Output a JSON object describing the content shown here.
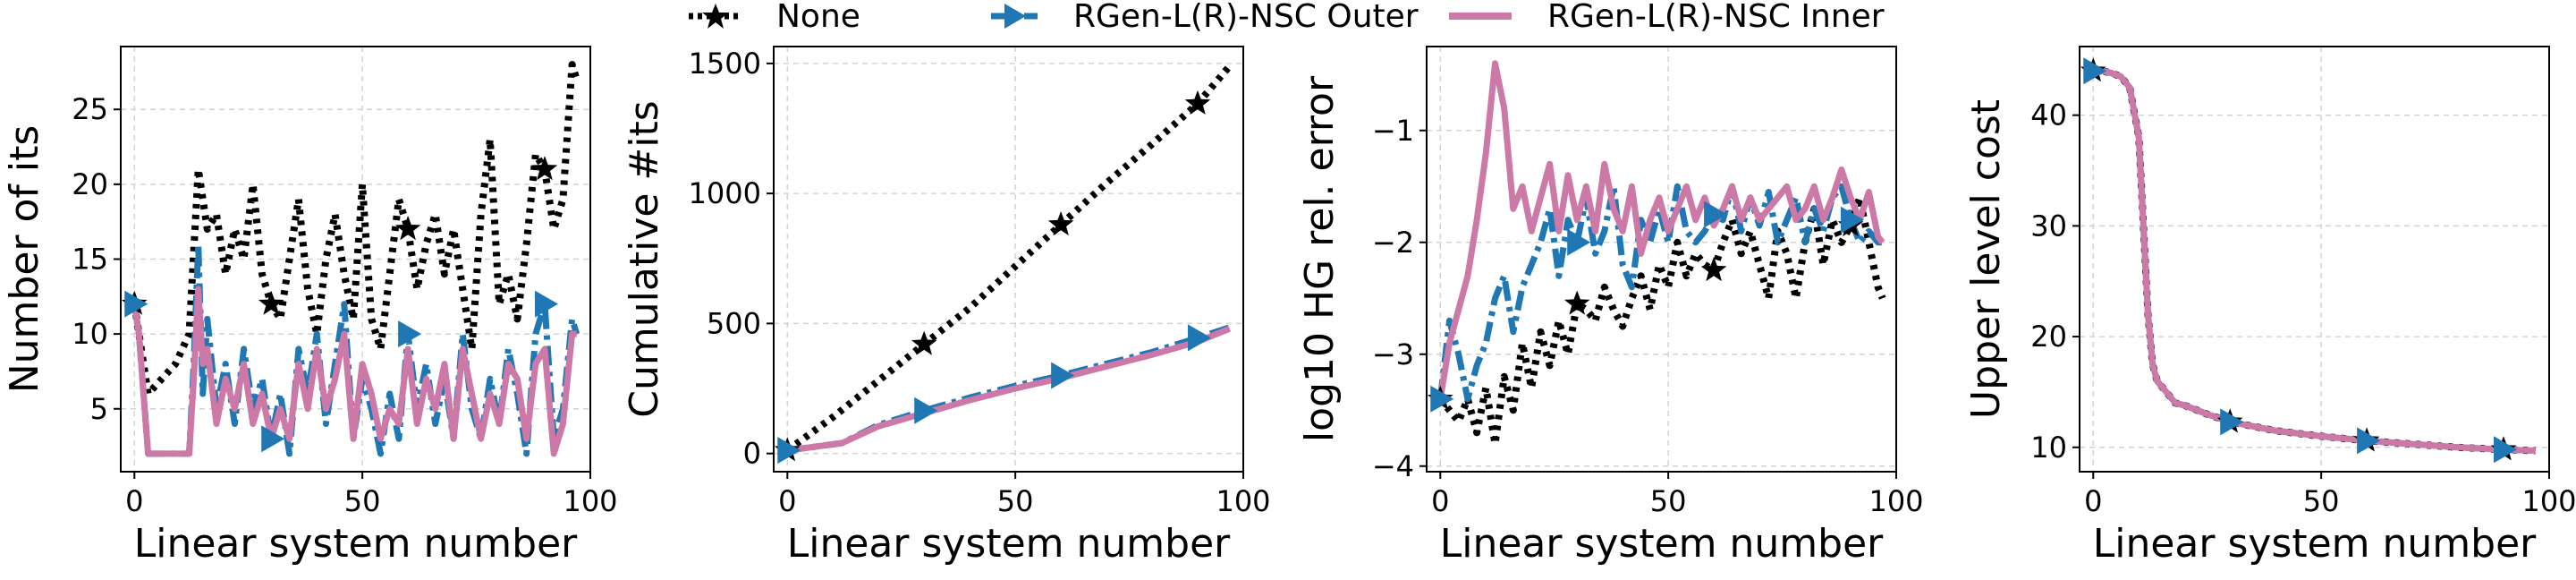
{
  "legend": [
    {
      "label": "None",
      "color": "#000000",
      "style": "dotted",
      "marker": "star"
    },
    {
      "label": "RGen-L(R)-NSC Outer",
      "color": "#1f77b4",
      "style": "dashdot",
      "marker": "triangle-right"
    },
    {
      "label": "RGen-L(R)-NSC Inner",
      "color": "#cc79a7",
      "style": "solid",
      "marker": "none"
    }
  ],
  "chart_data": [
    {
      "type": "line",
      "xlabel": "Linear system number",
      "ylabel": "Number of its",
      "xlim": [
        -3,
        100
      ],
      "ylim": [
        0.8,
        29.2
      ],
      "xticks": [
        0,
        50,
        100
      ],
      "yticks": [
        5,
        10,
        15,
        20,
        25
      ],
      "ytick_labels": [
        "5",
        "10",
        "15",
        "20",
        "25"
      ],
      "grid": true,
      "series": [
        {
          "name": "None",
          "x": [
            0,
            3,
            6,
            9,
            12,
            14,
            16,
            18,
            20,
            22,
            24,
            26,
            28,
            30,
            32,
            34,
            36,
            38,
            40,
            42,
            44,
            46,
            48,
            50,
            52,
            54,
            56,
            58,
            60,
            62,
            64,
            66,
            68,
            70,
            72,
            74,
            76,
            78,
            80,
            82,
            84,
            86,
            88,
            90,
            92,
            94,
            96,
            97
          ],
          "y": [
            12,
            6,
            7,
            8,
            10,
            21,
            17,
            18,
            14,
            17,
            15,
            20,
            14,
            12,
            11,
            15,
            19,
            13,
            10,
            15,
            18,
            14,
            11,
            20,
            11,
            9,
            14,
            19,
            17,
            13,
            16,
            18,
            14,
            17,
            13,
            9,
            18,
            23,
            12,
            14,
            11,
            16,
            22,
            21,
            17,
            19,
            28,
            27
          ]
        },
        {
          "name": "RGen-L(R)-NSC Outer",
          "x": [
            0,
            1,
            3,
            6,
            9,
            12,
            13,
            14,
            15,
            16,
            18,
            20,
            22,
            24,
            26,
            28,
            30,
            32,
            34,
            36,
            38,
            40,
            42,
            44,
            46,
            48,
            50,
            52,
            54,
            56,
            58,
            60,
            62,
            64,
            66,
            68,
            70,
            72,
            74,
            76,
            78,
            80,
            82,
            84,
            86,
            88,
            90,
            92,
            94,
            96,
            97
          ],
          "y": [
            12,
            10,
            2,
            2,
            2,
            2,
            8,
            16,
            6,
            11,
            5,
            8,
            4,
            9,
            5,
            7,
            3,
            6,
            2,
            9,
            6,
            10,
            4,
            8,
            12,
            3,
            7,
            5,
            2,
            6,
            3,
            10,
            5,
            8,
            4,
            7,
            3,
            10,
            5,
            3,
            7,
            4,
            9,
            6,
            2,
            10,
            12,
            3,
            5,
            11,
            10
          ]
        },
        {
          "name": "RGen-L(R)-NSC Inner",
          "x": [
            0,
            1,
            3,
            6,
            9,
            12,
            13,
            14,
            15,
            16,
            18,
            20,
            22,
            24,
            26,
            28,
            30,
            32,
            34,
            36,
            38,
            40,
            42,
            44,
            46,
            48,
            50,
            52,
            54,
            56,
            58,
            60,
            62,
            64,
            66,
            68,
            70,
            72,
            74,
            76,
            78,
            80,
            82,
            84,
            86,
            88,
            90,
            92,
            94,
            96,
            97
          ],
          "y": [
            12,
            10,
            2,
            2,
            2,
            2,
            7,
            13,
            8,
            9,
            4,
            7,
            5,
            8,
            4,
            6,
            3,
            5,
            3,
            8,
            5,
            9,
            5,
            7,
            10,
            3,
            8,
            6,
            3,
            5,
            4,
            9,
            4,
            7,
            5,
            8,
            3,
            9,
            6,
            3,
            6,
            4,
            8,
            7,
            3,
            8,
            9,
            2,
            4,
            10,
            10
          ]
        }
      ],
      "markers": {
        "None": [
          0,
          30,
          60,
          90
        ],
        "RGen-L(R)-NSC Outer": [
          0,
          30,
          60,
          90
        ]
      }
    },
    {
      "type": "line",
      "xlabel": "Linear system number",
      "ylabel": "Cumulative #its",
      "xlim": [
        -3,
        100
      ],
      "ylim": [
        -70,
        1565
      ],
      "xticks": [
        0,
        50,
        100
      ],
      "yticks": [
        0,
        500,
        1000,
        1500
      ],
      "ytick_labels": [
        "0",
        "500",
        "1000",
        "1500"
      ],
      "grid": true,
      "series": [
        {
          "name": "None",
          "x": [
            0,
            10,
            20,
            30,
            40,
            50,
            60,
            70,
            80,
            90,
            97
          ],
          "y": [
            12,
            140,
            280,
            420,
            560,
            720,
            880,
            1040,
            1190,
            1345,
            1490
          ]
        },
        {
          "name": "RGen-L(R)-NSC Outer",
          "x": [
            0,
            12,
            20,
            30,
            40,
            50,
            60,
            70,
            80,
            90,
            97
          ],
          "y": [
            12,
            40,
            110,
            165,
            215,
            260,
            300,
            345,
            390,
            445,
            485
          ]
        },
        {
          "name": "RGen-L(R)-NSC Inner",
          "x": [
            0,
            12,
            20,
            30,
            40,
            50,
            60,
            70,
            80,
            90,
            97
          ],
          "y": [
            12,
            40,
            105,
            155,
            205,
            250,
            290,
            335,
            380,
            430,
            480
          ]
        }
      ],
      "markers": {
        "None": [
          0,
          30,
          60,
          90
        ],
        "RGen-L(R)-NSC Outer": [
          0,
          30,
          60,
          90
        ]
      }
    },
    {
      "type": "line",
      "xlabel": "Linear system number",
      "ylabel": "log10 HG rel. error",
      "xlim": [
        -3,
        100
      ],
      "ylim": [
        -4.05,
        -0.25
      ],
      "xticks": [
        0,
        50,
        100
      ],
      "yticks": [
        -4,
        -3,
        -2,
        -1
      ],
      "ytick_labels": [
        "−4",
        "−3",
        "−2",
        "−1"
      ],
      "grid": true,
      "series": [
        {
          "name": "None",
          "x": [
            0,
            2,
            4,
            6,
            8,
            10,
            12,
            14,
            16,
            18,
            20,
            22,
            24,
            26,
            28,
            30,
            32,
            34,
            36,
            38,
            40,
            42,
            44,
            46,
            48,
            50,
            52,
            54,
            56,
            58,
            60,
            62,
            64,
            66,
            68,
            70,
            72,
            74,
            76,
            78,
            80,
            82,
            84,
            86,
            88,
            90,
            92,
            94,
            96,
            97
          ],
          "y": [
            -3.4,
            -3.5,
            -3.6,
            -3.4,
            -3.7,
            -3.3,
            -3.8,
            -3.2,
            -3.5,
            -2.9,
            -3.3,
            -2.8,
            -3.1,
            -2.7,
            -3.0,
            -2.55,
            -2.6,
            -2.7,
            -2.4,
            -2.6,
            -2.75,
            -2.5,
            -2.3,
            -2.6,
            -2.2,
            -2.4,
            -2.0,
            -2.3,
            -2.1,
            -2.2,
            -2.25,
            -2.0,
            -1.8,
            -2.1,
            -1.9,
            -2.2,
            -2.5,
            -1.9,
            -2.1,
            -2.5,
            -2.0,
            -1.7,
            -2.2,
            -1.8,
            -2.0,
            -1.85,
            -1.6,
            -2.0,
            -2.4,
            -2.5
          ]
        },
        {
          "name": "RGen-L(R)-NSC Outer",
          "x": [
            0,
            2,
            4,
            6,
            8,
            10,
            12,
            14,
            16,
            18,
            20,
            22,
            24,
            26,
            28,
            30,
            32,
            34,
            36,
            38,
            40,
            42,
            44,
            46,
            48,
            50,
            52,
            54,
            56,
            58,
            60,
            62,
            64,
            66,
            68,
            70,
            72,
            74,
            76,
            78,
            80,
            82,
            84,
            86,
            88,
            90,
            92,
            94,
            96,
            97
          ],
          "y": [
            -3.4,
            -2.7,
            -3.0,
            -3.4,
            -3.1,
            -2.9,
            -2.5,
            -2.3,
            -2.8,
            -2.4,
            -2.2,
            -2.0,
            -1.7,
            -2.3,
            -1.8,
            -2.0,
            -1.6,
            -2.1,
            -1.9,
            -1.5,
            -2.2,
            -2.4,
            -1.8,
            -2.0,
            -1.7,
            -2.0,
            -1.5,
            -1.9,
            -2.0,
            -1.9,
            -1.75,
            -1.8,
            -1.5,
            -1.9,
            -1.6,
            -1.85,
            -1.55,
            -2.0,
            -1.8,
            -1.6,
            -2.0,
            -1.7,
            -1.9,
            -1.6,
            -1.5,
            -1.8,
            -2.0,
            -1.9,
            -2.0,
            -2.0
          ]
        },
        {
          "name": "RGen-L(R)-NSC Inner",
          "x": [
            0,
            2,
            4,
            6,
            8,
            10,
            12,
            14,
            16,
            18,
            20,
            22,
            24,
            26,
            28,
            30,
            32,
            34,
            36,
            38,
            40,
            42,
            44,
            46,
            48,
            50,
            52,
            54,
            56,
            58,
            60,
            62,
            64,
            66,
            68,
            70,
            72,
            74,
            76,
            78,
            80,
            82,
            84,
            86,
            88,
            90,
            92,
            94,
            96,
            97
          ],
          "y": [
            -3.4,
            -2.9,
            -2.6,
            -2.3,
            -1.8,
            -1.2,
            -0.4,
            -0.8,
            -1.7,
            -1.5,
            -1.9,
            -1.6,
            -1.3,
            -1.9,
            -1.4,
            -1.8,
            -1.5,
            -1.9,
            -1.3,
            -1.7,
            -1.9,
            -1.5,
            -2.1,
            -1.8,
            -1.6,
            -1.9,
            -1.7,
            -1.5,
            -1.8,
            -1.6,
            -1.85,
            -1.7,
            -1.5,
            -1.8,
            -1.6,
            -1.8,
            -1.7,
            -1.6,
            -1.5,
            -1.8,
            -1.7,
            -1.5,
            -1.8,
            -1.6,
            -1.35,
            -1.6,
            -1.8,
            -1.55,
            -1.95,
            -2.0
          ]
        }
      ],
      "markers": {
        "None": [
          0,
          30,
          60,
          90
        ],
        "RGen-L(R)-NSC Outer": [
          0,
          30,
          60,
          90
        ]
      }
    },
    {
      "type": "line",
      "xlabel": "Linear system number",
      "ylabel": "Upper level cost",
      "xlim": [
        -3,
        100
      ],
      "ylim": [
        7.8,
        46.2
      ],
      "xticks": [
        0,
        50,
        100
      ],
      "yticks": [
        10,
        20,
        30,
        40
      ],
      "ytick_labels": [
        "10",
        "20",
        "30",
        "40"
      ],
      "grid": true,
      "series": [
        {
          "name": "None",
          "x": [
            0,
            2,
            4,
            6,
            8,
            10,
            11,
            12,
            13,
            14,
            16,
            18,
            20,
            25,
            30,
            40,
            50,
            60,
            70,
            80,
            90,
            97
          ],
          "y": [
            44,
            44,
            43.8,
            43.5,
            42.5,
            38,
            30,
            22,
            17.5,
            16,
            15,
            14,
            13.8,
            13,
            12.3,
            11.5,
            11,
            10.6,
            10.3,
            10,
            9.8,
            9.7
          ]
        },
        {
          "name": "RGen-L(R)-NSC Outer",
          "x": [
            0,
            2,
            4,
            6,
            8,
            10,
            11,
            12,
            13,
            14,
            16,
            18,
            20,
            25,
            30,
            40,
            50,
            60,
            70,
            80,
            90,
            97
          ],
          "y": [
            44,
            44,
            43.8,
            43.5,
            42.5,
            38,
            30,
            22,
            17.5,
            16,
            15,
            14,
            13.8,
            13,
            12.3,
            11.5,
            11,
            10.6,
            10.3,
            10,
            9.8,
            9.7
          ]
        },
        {
          "name": "RGen-L(R)-NSC Inner",
          "x": [
            0,
            2,
            4,
            6,
            8,
            10,
            11,
            12,
            13,
            14,
            16,
            18,
            20,
            25,
            30,
            40,
            50,
            60,
            70,
            80,
            90,
            97
          ],
          "y": [
            44,
            44,
            43.8,
            43.5,
            42.5,
            38,
            30,
            22,
            17.5,
            16,
            15,
            14,
            13.8,
            13,
            12.3,
            11.5,
            11,
            10.6,
            10.3,
            10,
            9.8,
            9.7
          ]
        }
      ],
      "markers": {
        "None": [
          0,
          30,
          60,
          90
        ],
        "RGen-L(R)-NSC Outer": [
          0,
          30,
          60,
          90
        ]
      }
    }
  ]
}
